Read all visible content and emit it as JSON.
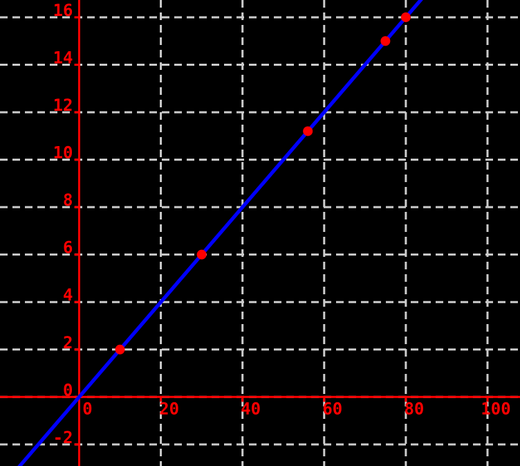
{
  "chart_data": {
    "type": "scatter",
    "title": "",
    "xlabel": "",
    "ylabel": "",
    "grid": true,
    "x_ticks": [
      0,
      20,
      40,
      60,
      80,
      100
    ],
    "y_ticks": [
      -2,
      0,
      2,
      4,
      6,
      8,
      10,
      12,
      14,
      16
    ],
    "xlim": [
      -19.39,
      107.96
    ],
    "ylim": [
      -2.909,
      16.729
    ],
    "points": [
      {
        "x": 10,
        "y": 2
      },
      {
        "x": 30,
        "y": 6
      },
      {
        "x": 56,
        "y": 11.2
      },
      {
        "x": 75,
        "y": 15
      },
      {
        "x": 80,
        "y": 16
      }
    ],
    "line": {
      "slope": 0.2,
      "intercept": 0
    },
    "colors": {
      "background": "#000000",
      "axis": "#ff0000",
      "grid": "#cccccc",
      "line": "#0000ff",
      "point": "#ff0000",
      "tick_label": "#ff0000"
    }
  }
}
